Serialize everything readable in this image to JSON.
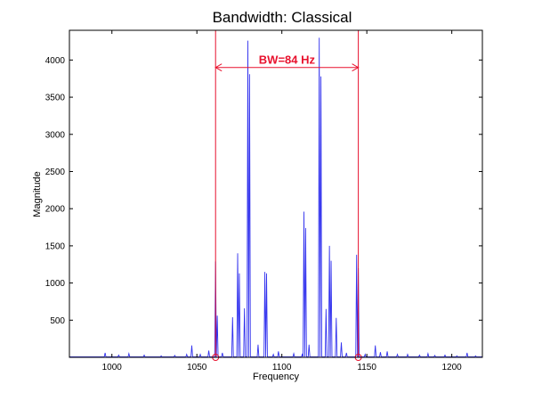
{
  "chart_data": {
    "type": "line",
    "title": "Bandwidth: Classical",
    "xlabel": "Frequency",
    "ylabel": "Magnitude",
    "xlim": [
      975,
      1218
    ],
    "ylim": [
      0,
      4400
    ],
    "xticks": [
      1000,
      1050,
      1100,
      1150,
      1200
    ],
    "yticks": [
      500,
      1000,
      1500,
      2000,
      2500,
      3000,
      3500,
      4000
    ],
    "grid": false,
    "colors": {
      "series": "#3333ee",
      "markers": "#e8112d",
      "axes": "#000000"
    },
    "series": [
      {
        "peaks": [
          [
            996,
            60
          ],
          [
            1004,
            30
          ],
          [
            1010,
            50
          ],
          [
            1019,
            30
          ],
          [
            1029,
            20
          ],
          [
            1037,
            25
          ],
          [
            1044,
            40
          ],
          [
            1047,
            160
          ],
          [
            1052,
            40
          ],
          [
            1057,
            90
          ],
          [
            1061,
            1290
          ],
          [
            1062,
            560
          ],
          [
            1065,
            60
          ],
          [
            1071,
            540
          ],
          [
            1074,
            1400
          ],
          [
            1075,
            1130
          ],
          [
            1078,
            660
          ],
          [
            1080,
            4260
          ],
          [
            1081,
            3810
          ],
          [
            1086,
            170
          ],
          [
            1090,
            1150
          ],
          [
            1091,
            1130
          ],
          [
            1095,
            40
          ],
          [
            1098,
            80
          ],
          [
            1107,
            50
          ],
          [
            1112,
            40
          ],
          [
            1113,
            1960
          ],
          [
            1114,
            1740
          ],
          [
            1116,
            170
          ],
          [
            1122,
            4300
          ],
          [
            1123,
            3780
          ],
          [
            1126,
            650
          ],
          [
            1128,
            1500
          ],
          [
            1129,
            1300
          ],
          [
            1132,
            530
          ],
          [
            1135,
            200
          ],
          [
            1138,
            60
          ],
          [
            1144,
            1380
          ],
          [
            1145,
            1200
          ],
          [
            1149,
            40
          ],
          [
            1155,
            160
          ],
          [
            1158,
            70
          ],
          [
            1162,
            80
          ],
          [
            1168,
            40
          ],
          [
            1174,
            40
          ],
          [
            1181,
            30
          ],
          [
            1186,
            50
          ],
          [
            1190,
            25
          ],
          [
            1196,
            30
          ],
          [
            1203,
            20
          ],
          [
            1209,
            60
          ],
          [
            1214,
            20
          ]
        ]
      }
    ],
    "annotations": [
      {
        "type": "bandwidth",
        "text": "BW=84 Hz",
        "x_start": 1061,
        "x_end": 1145,
        "y": 3900
      }
    ]
  }
}
